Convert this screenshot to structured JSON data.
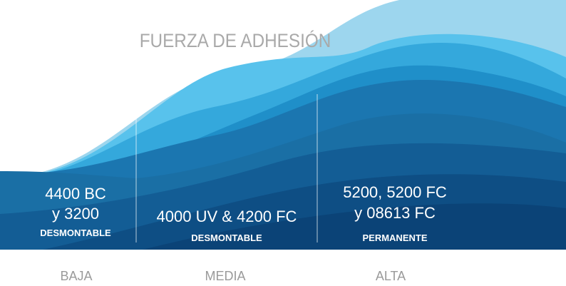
{
  "title": "FUERZA DE ADHESIÓN",
  "columns": [
    {
      "lines": [
        "4400 BC",
        "y 3200"
      ],
      "note": "DESMONTABLE",
      "level": "BAJA"
    },
    {
      "lines": [
        "4000 UV & 4200 FC"
      ],
      "note": "DESMONTABLE",
      "level": "MEDIA"
    },
    {
      "lines": [
        "5200, 5200 FC",
        "y 08613 FC"
      ],
      "note": "PERMANENTE",
      "level": "ALTA"
    }
  ]
}
